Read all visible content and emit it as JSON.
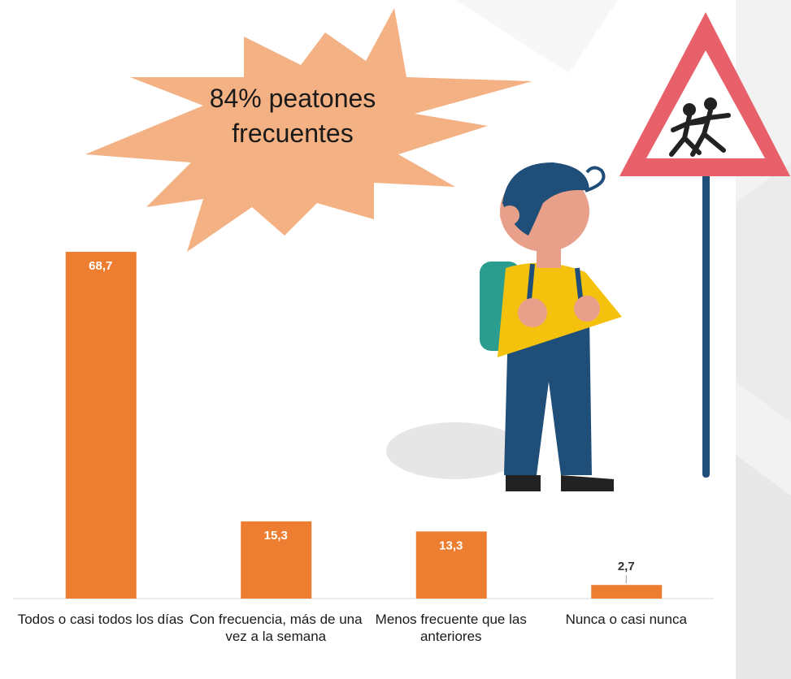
{
  "chart_data": {
    "type": "bar",
    "annotation": "84% peatones frecuentes",
    "categories": [
      "Todos o casi todos los días",
      "Con frecuencia, más de una vez a la semana",
      "Menos frecuente que las anteriores",
      "Nunca o casi nunca"
    ],
    "values": [
      68.7,
      15.3,
      13.3,
      2.7
    ],
    "value_labels": [
      "68,7",
      "15,3",
      "13,3",
      "2,7"
    ],
    "color": "#ed7d31",
    "ylim": [
      0,
      70
    ]
  }
}
